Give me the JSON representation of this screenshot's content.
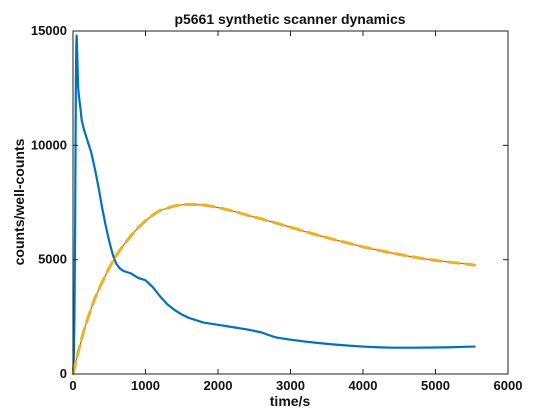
{
  "chart_data": {
    "type": "line",
    "title": "p5661 synthetic scanner dynamics",
    "xlabel": "time/s",
    "ylabel": "counts/well-counts",
    "xlim": [
      0,
      6000
    ],
    "ylim": [
      0,
      15000
    ],
    "xticks": [
      0,
      1000,
      2000,
      3000,
      4000,
      5000,
      6000
    ],
    "yticks": [
      0,
      5000,
      10000,
      15000
    ],
    "grid": false,
    "box": true,
    "series": [
      {
        "color": "#0072bd",
        "line_style": "solid",
        "x": [
          0,
          10,
          20,
          30,
          35,
          40,
          45,
          50,
          60,
          70,
          80,
          100,
          120,
          150,
          200,
          250,
          300,
          350,
          400,
          450,
          500,
          550,
          600,
          650,
          700,
          750,
          800,
          850,
          900,
          950,
          1000,
          1050,
          1100,
          1200,
          1300,
          1400,
          1500,
          1600,
          1700,
          1800,
          1900,
          2000,
          2200,
          2400,
          2600,
          2700,
          2800,
          3000,
          3200,
          3400,
          3600,
          3800,
          4000,
          4200,
          4400,
          4500,
          4700,
          5000,
          5200,
          5400,
          5540
        ],
        "y": [
          0,
          600,
          2500,
          6800,
          10000,
          12800,
          14300,
          14800,
          13800,
          12600,
          12200,
          11700,
          11100,
          10700,
          10200,
          9700,
          9000,
          8200,
          7300,
          6500,
          5800,
          5200,
          4800,
          4600,
          4500,
          4450,
          4400,
          4300,
          4200,
          4150,
          4100,
          3950,
          3800,
          3400,
          3050,
          2800,
          2600,
          2450,
          2350,
          2250,
          2200,
          2150,
          2050,
          1950,
          1820,
          1700,
          1600,
          1500,
          1420,
          1350,
          1290,
          1240,
          1200,
          1170,
          1150,
          1150,
          1150,
          1160,
          1170,
          1190,
          1200
        ]
      },
      {
        "color": "#d95319",
        "line_style": "solid",
        "x": [
          0,
          50,
          100,
          150,
          200,
          300,
          400,
          500,
          600,
          700,
          800,
          900,
          1000,
          1100,
          1200,
          1300,
          1400,
          1500,
          1600,
          1700,
          1800,
          1900,
          2000,
          2200,
          2400,
          2600,
          2800,
          3000,
          3200,
          3400,
          3600,
          3800,
          4000,
          4200,
          4400,
          4600,
          4800,
          5000,
          5200,
          5400,
          5540
        ],
        "y": [
          0,
          700,
          1300,
          1900,
          2400,
          3300,
          4000,
          4650,
          5200,
          5650,
          6050,
          6400,
          6700,
          6950,
          7150,
          7250,
          7350,
          7400,
          7420,
          7410,
          7390,
          7340,
          7280,
          7130,
          6950,
          6780,
          6600,
          6420,
          6230,
          6050,
          5880,
          5720,
          5560,
          5420,
          5290,
          5170,
          5060,
          4970,
          4890,
          4820,
          4760
        ]
      },
      {
        "color": "#edb120",
        "line_style": "dashed",
        "x": [
          0,
          50,
          100,
          150,
          200,
          300,
          400,
          500,
          600,
          700,
          800,
          900,
          1000,
          1100,
          1200,
          1300,
          1400,
          1500,
          1600,
          1700,
          1800,
          1900,
          2000,
          2200,
          2400,
          2600,
          2800,
          3000,
          3200,
          3400,
          3600,
          3800,
          4000,
          4200,
          4400,
          4600,
          4800,
          5000,
          5200,
          5400,
          5540
        ],
        "y": [
          0,
          700,
          1300,
          1900,
          2400,
          3300,
          4000,
          4650,
          5200,
          5650,
          6050,
          6400,
          6700,
          6950,
          7150,
          7250,
          7350,
          7400,
          7420,
          7410,
          7390,
          7340,
          7280,
          7130,
          6950,
          6780,
          6600,
          6420,
          6230,
          6050,
          5880,
          5720,
          5560,
          5420,
          5290,
          5170,
          5060,
          4970,
          4890,
          4820,
          4760
        ]
      }
    ]
  }
}
